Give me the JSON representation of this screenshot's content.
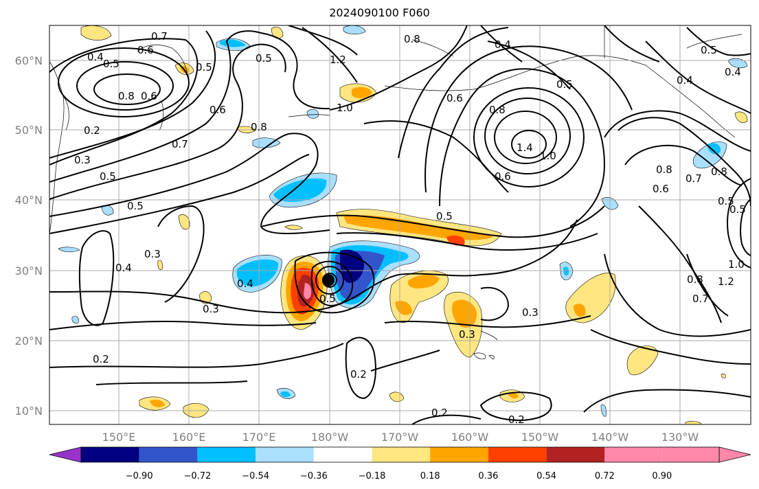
{
  "title": "2024090100 F060",
  "lat_labels": [
    "60°N",
    "50°N",
    "40°N",
    "30°N",
    "20°N",
    "10°N"
  ],
  "lon_labels": [
    "150°E",
    "160°E",
    "170°E",
    "180°W",
    "170°W",
    "160°W",
    "150°W",
    "140°W",
    "130°W"
  ],
  "colorbar": {
    "ticks": [
      "−0.90",
      "−0.72",
      "−0.54",
      "−0.36",
      "−0.18",
      "0.18",
      "0.36",
      "0.54",
      "0.72",
      "0.90"
    ],
    "colors": [
      "#9933cc",
      "#000080",
      "#3355cc",
      "#00bfff",
      "#aadfff",
      "#ffffff",
      "#ffe680",
      "#ffa500",
      "#ff4000",
      "#b22222",
      "#ff88aa"
    ]
  },
  "contour_labels": [
    "0.7",
    "0.6",
    "0.5",
    "0.4",
    "0.5",
    "0.8",
    "0.6",
    "0.2",
    "0.3",
    "0.5",
    "0.6",
    "0.7",
    "0.8",
    "0.5",
    "1.2",
    "1.0",
    "0.8",
    "0.4",
    "0.5",
    "0.8",
    "1.4",
    "1.0",
    "0.6",
    "0.8",
    "0.7",
    "0.6",
    "0.8",
    "0.4",
    "0.5",
    "0.4",
    "0.5",
    "0.3",
    "0.4",
    "0.4",
    "0.5",
    "0.3",
    "0.3",
    "0.3",
    "0.2",
    "0.2",
    "0.2",
    "0.2",
    "1.0",
    "0.8",
    "1.2",
    "0.5",
    "0.7",
    "0.5",
    "0.6",
    "0.5"
  ]
}
